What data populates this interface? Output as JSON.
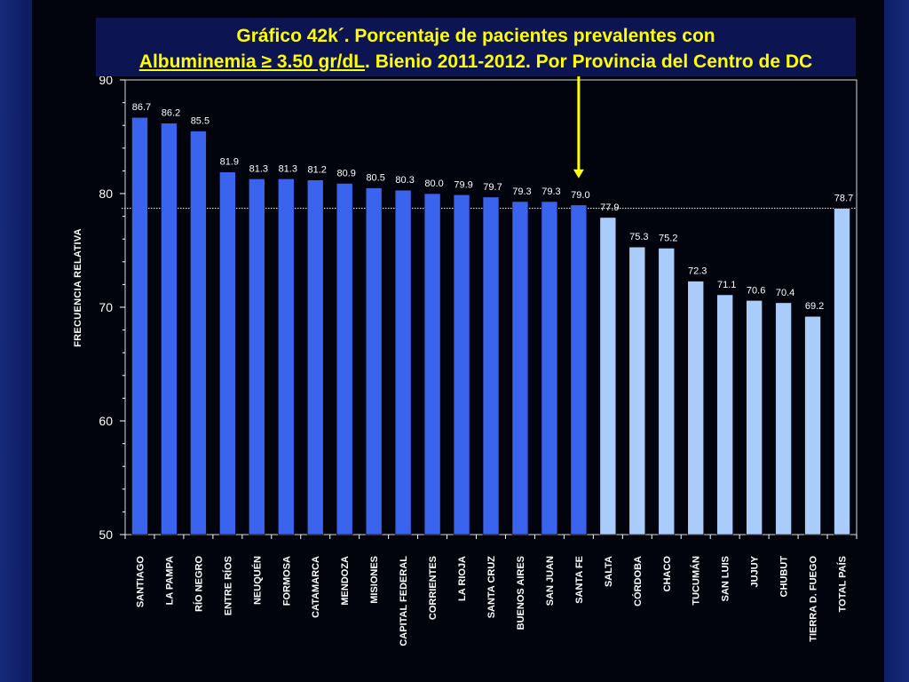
{
  "title": {
    "line1": "Gráfico 42k´. Porcentaje de pacientes prevalentes con",
    "line2_underlined": "Albuminemia ≥ 3.50 gr/dL",
    "line2_rest": ". Bienio 2011-2012. Por Provincia del Centro de DC"
  },
  "colors": {
    "background": "#0b1650",
    "plot_background": "#01030d",
    "title_background": "#0c1551",
    "title_text": "#ffff00",
    "bar_dark": "#3a63ee",
    "bar_light": "#a9ccfb",
    "arrow": "#ffff00",
    "text": "#ffffff"
  },
  "chart_data": {
    "type": "bar",
    "ylabel": "FRECUENCIA RELATIVA",
    "xlabel": "",
    "ylim": [
      50,
      90
    ],
    "yticks": [
      50,
      60,
      70,
      80,
      90
    ],
    "reference_line": 78.7,
    "highlight_arrow_category": "SANTA FE",
    "categories": [
      "SANTIAGO",
      "LA PAMPA",
      "RÍO NEGRO",
      "ENTRE RÍOS",
      "NEUQUÉN",
      "FORMOSA",
      "CATAMARCA",
      "MENDOZA",
      "MISIONES",
      "CAPITAL FEDERAL",
      "CORRIENTES",
      "LA RIOJA",
      "SANTA CRUZ",
      "BUENOS AIRES",
      "SAN JUAN",
      "SANTA FE",
      "SALTA",
      "CÓRDOBA",
      "CHACO",
      "TUCUMÁN",
      "SAN LUIS",
      "JUJUY",
      "CHUBUT",
      "TIERRA D. FUEGO",
      "TOTAL PAÍS"
    ],
    "values": [
      86.7,
      86.2,
      85.5,
      81.9,
      81.3,
      81.3,
      81.2,
      80.9,
      80.5,
      80.3,
      80.0,
      79.9,
      79.7,
      79.3,
      79.3,
      79.0,
      77.9,
      75.3,
      75.2,
      72.3,
      71.1,
      70.6,
      70.4,
      69.2,
      78.7
    ],
    "value_labels": [
      "86.7",
      "86.2",
      "85.5",
      "81.9",
      "81.3",
      "81.3",
      "81.2",
      "80.9",
      "80.5",
      "80.3",
      "80.0",
      "79.9",
      "79.7",
      "79.3",
      "79.3",
      "79.0",
      "77.9",
      "75.3",
      "75.2",
      "72.3",
      "71.1",
      "70.6",
      "70.4",
      "69.2",
      "78.7"
    ],
    "bar_shade": [
      "dark",
      "dark",
      "dark",
      "dark",
      "dark",
      "dark",
      "dark",
      "dark",
      "dark",
      "dark",
      "dark",
      "dark",
      "dark",
      "dark",
      "dark",
      "dark",
      "light",
      "light",
      "light",
      "light",
      "light",
      "light",
      "light",
      "light",
      "light"
    ]
  }
}
